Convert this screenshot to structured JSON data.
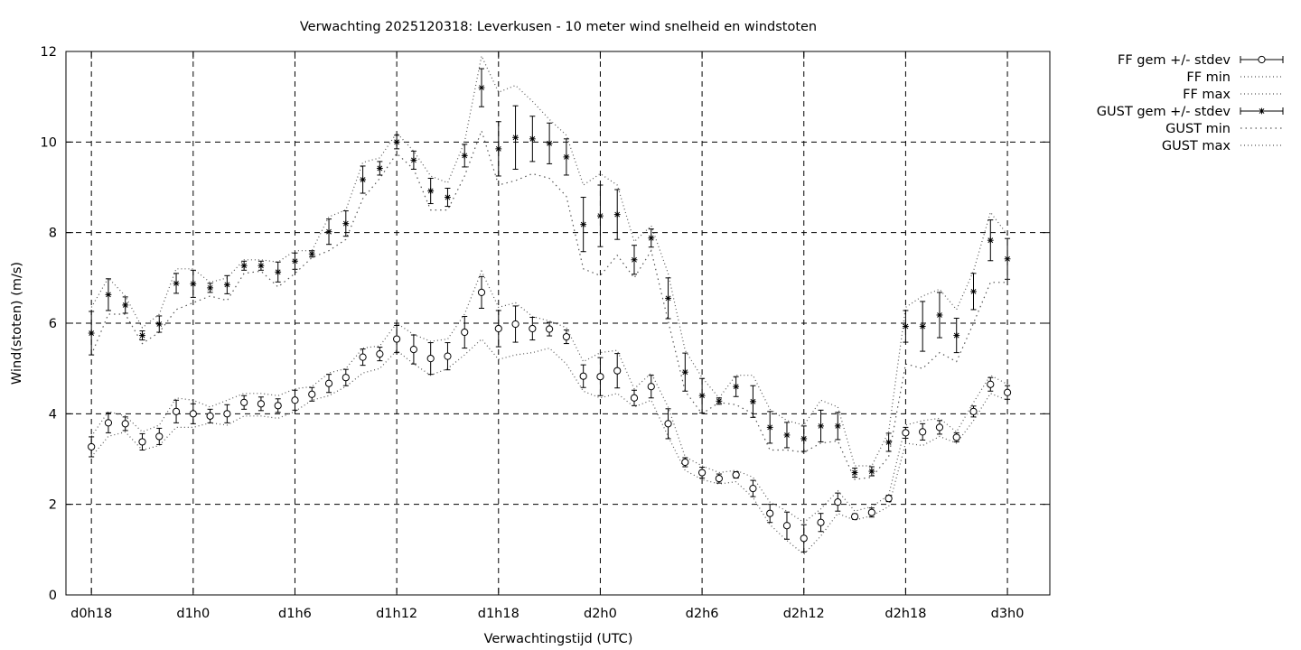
{
  "chart_data": {
    "type": "line",
    "title": "Verwachting 2025120318: Leverkusen - 10 meter wind snelheid en windstoten",
    "xlabel": "Verwachtingstijd (UTC)",
    "ylabel": "Wind(stoten) (m/s)",
    "ylim": [
      0,
      12
    ],
    "xlim": [
      -1.5,
      56.5
    ],
    "x_unit": "hours after forecast start (d0h18)",
    "yticks": [
      0,
      2,
      4,
      6,
      8,
      10,
      12
    ],
    "xticks": [
      {
        "x": 0,
        "label": "d0h18"
      },
      {
        "x": 6,
        "label": "d1h0"
      },
      {
        "x": 12,
        "label": "d1h6"
      },
      {
        "x": 18,
        "label": "d1h12"
      },
      {
        "x": 24,
        "label": "d1h18"
      },
      {
        "x": 30,
        "label": "d2h0"
      },
      {
        "x": 36,
        "label": "d2h6"
      },
      {
        "x": 42,
        "label": "d2h12"
      },
      {
        "x": 48,
        "label": "d2h18"
      },
      {
        "x": 54,
        "label": "d3h0"
      }
    ],
    "grid": true,
    "legend_position": "outside-right",
    "legend": [
      {
        "label": "FF gem +/- stdev",
        "style": "errorbar-circle"
      },
      {
        "label": "FF min",
        "style": "dotted"
      },
      {
        "label": "FF max",
        "style": "dotted"
      },
      {
        "label": "GUST gem +/- stdev",
        "style": "errorbar-star"
      },
      {
        "label": "GUST min",
        "style": "dotted-coarse"
      },
      {
        "label": "GUST max",
        "style": "dotted"
      }
    ],
    "x": [
      0,
      1,
      2,
      3,
      4,
      5,
      6,
      7,
      8,
      9,
      10,
      11,
      12,
      13,
      14,
      15,
      16,
      17,
      18,
      19,
      20,
      21,
      22,
      23,
      24,
      25,
      26,
      27,
      28,
      29,
      30,
      31,
      32,
      33,
      34,
      35,
      36,
      37,
      38,
      39,
      40,
      41,
      42,
      43,
      44,
      45,
      46,
      47,
      48,
      49,
      50,
      51,
      52,
      53,
      54
    ],
    "series": [
      {
        "name": "FF gem +/- stdev",
        "values": [
          3.27,
          3.8,
          3.78,
          3.38,
          3.5,
          4.05,
          4.0,
          3.95,
          4.0,
          4.25,
          4.22,
          4.18,
          4.3,
          4.43,
          4.67,
          4.8,
          5.25,
          5.32,
          5.65,
          5.42,
          5.22,
          5.27,
          5.8,
          6.68,
          5.88,
          5.98,
          5.88,
          5.87,
          5.7,
          4.83,
          4.82,
          4.95,
          4.35,
          4.6,
          3.78,
          2.93,
          2.7,
          2.57,
          2.65,
          2.35,
          1.8,
          1.53,
          1.25,
          1.6,
          2.05,
          1.73,
          1.82,
          2.13,
          3.58,
          3.6,
          3.7,
          3.48,
          4.05,
          4.65,
          4.47
        ],
        "stdev": [
          0.22,
          0.22,
          0.15,
          0.18,
          0.18,
          0.25,
          0.22,
          0.15,
          0.2,
          0.15,
          0.15,
          0.15,
          0.22,
          0.15,
          0.2,
          0.18,
          0.18,
          0.15,
          0.3,
          0.32,
          0.35,
          0.3,
          0.35,
          0.35,
          0.4,
          0.4,
          0.25,
          0.15,
          0.15,
          0.25,
          0.42,
          0.38,
          0.17,
          0.25,
          0.33,
          0.1,
          0.12,
          0.1,
          0.07,
          0.18,
          0.2,
          0.3,
          0.3,
          0.2,
          0.2,
          0.06,
          0.1,
          0.07,
          0.12,
          0.18,
          0.15,
          0.1,
          0.12,
          0.15,
          0.15
        ]
      },
      {
        "name": "FF min",
        "values": [
          3.05,
          3.5,
          3.6,
          3.2,
          3.3,
          3.7,
          3.7,
          3.8,
          3.75,
          3.95,
          3.95,
          3.9,
          4.05,
          4.3,
          4.4,
          4.6,
          4.9,
          5.0,
          5.4,
          5.1,
          4.85,
          5.0,
          5.3,
          5.65,
          5.2,
          5.3,
          5.35,
          5.45,
          5.1,
          4.5,
          4.35,
          4.45,
          4.15,
          4.3,
          3.5,
          2.75,
          2.55,
          2.45,
          2.5,
          2.15,
          1.55,
          1.2,
          0.9,
          1.3,
          1.8,
          1.65,
          1.75,
          1.95,
          3.35,
          3.3,
          3.5,
          3.35,
          3.85,
          4.45,
          4.3
        ]
      },
      {
        "name": "FF max",
        "values": [
          3.5,
          4.05,
          3.95,
          3.6,
          3.75,
          4.35,
          4.3,
          4.15,
          4.3,
          4.45,
          4.45,
          4.4,
          4.55,
          4.6,
          4.9,
          5.0,
          5.45,
          5.5,
          6.0,
          5.75,
          5.6,
          5.65,
          6.2,
          7.15,
          6.35,
          6.45,
          6.15,
          6.05,
          5.9,
          5.15,
          5.35,
          5.4,
          4.55,
          4.9,
          4.15,
          3.05,
          2.85,
          2.7,
          2.75,
          2.6,
          2.05,
          1.85,
          1.6,
          1.9,
          2.3,
          1.85,
          1.95,
          2.2,
          3.75,
          3.85,
          3.9,
          3.6,
          4.25,
          4.85,
          4.65
        ]
      },
      {
        "name": "GUST gem +/- stdev",
        "values": [
          5.78,
          6.63,
          6.4,
          5.73,
          5.98,
          6.88,
          6.87,
          6.78,
          6.85,
          7.27,
          7.27,
          7.13,
          7.37,
          7.53,
          8.02,
          8.2,
          9.17,
          9.42,
          10.0,
          9.6,
          8.92,
          8.78,
          9.7,
          11.2,
          9.85,
          10.1,
          10.07,
          9.97,
          9.67,
          8.18,
          8.37,
          8.4,
          7.4,
          7.88,
          6.55,
          4.92,
          4.4,
          4.28,
          4.6,
          4.27,
          3.7,
          3.53,
          3.45,
          3.73,
          3.73,
          2.7,
          2.73,
          3.37,
          5.93,
          5.93,
          6.18,
          5.73,
          6.7,
          7.83,
          7.42
        ]
      },
      {
        "name": "GUST min",
        "values": [
          5.3,
          6.2,
          6.2,
          5.55,
          5.8,
          6.3,
          6.45,
          6.6,
          6.5,
          7.1,
          7.15,
          6.8,
          7.1,
          7.45,
          7.6,
          7.85,
          8.75,
          9.2,
          9.75,
          9.4,
          8.5,
          8.5,
          9.25,
          10.25,
          9.05,
          9.15,
          9.3,
          9.2,
          8.8,
          7.2,
          7.05,
          7.5,
          7.0,
          7.6,
          6.05,
          4.5,
          4.0,
          4.25,
          4.2,
          4.0,
          3.2,
          3.2,
          3.15,
          3.35,
          3.4,
          2.55,
          2.6,
          3.05,
          5.1,
          5.0,
          5.35,
          5.15,
          6.0,
          6.9,
          6.9
        ]
      },
      {
        "name": "GUST max",
        "values": [
          6.35,
          7.0,
          6.6,
          5.9,
          6.2,
          7.2,
          7.2,
          6.9,
          7.0,
          7.4,
          7.4,
          7.35,
          7.6,
          7.6,
          8.35,
          8.5,
          9.55,
          9.65,
          10.2,
          9.8,
          9.25,
          9.1,
          10.0,
          11.9,
          11.1,
          11.25,
          10.9,
          10.5,
          10.15,
          9.05,
          9.3,
          9.05,
          7.8,
          8.15,
          7.1,
          5.4,
          4.8,
          4.35,
          4.85,
          4.85,
          4.1,
          3.85,
          3.75,
          4.3,
          4.15,
          2.85,
          2.85,
          3.6,
          6.35,
          6.6,
          6.75,
          6.3,
          7.15,
          8.45,
          7.95
        ]
      }
    ],
    "gust_stdev": [
      0.48,
      0.35,
      0.18,
      0.1,
      0.18,
      0.22,
      0.3,
      0.1,
      0.2,
      0.1,
      0.1,
      0.22,
      0.18,
      0.07,
      0.28,
      0.28,
      0.3,
      0.15,
      0.15,
      0.2,
      0.28,
      0.2,
      0.25,
      0.42,
      0.6,
      0.7,
      0.5,
      0.45,
      0.4,
      0.6,
      0.68,
      0.55,
      0.32,
      0.2,
      0.45,
      0.42,
      0.38,
      0.07,
      0.22,
      0.35,
      0.35,
      0.28,
      0.28,
      0.35,
      0.3,
      0.1,
      0.1,
      0.2,
      0.35,
      0.55,
      0.5,
      0.38,
      0.4,
      0.45,
      0.45
    ]
  }
}
